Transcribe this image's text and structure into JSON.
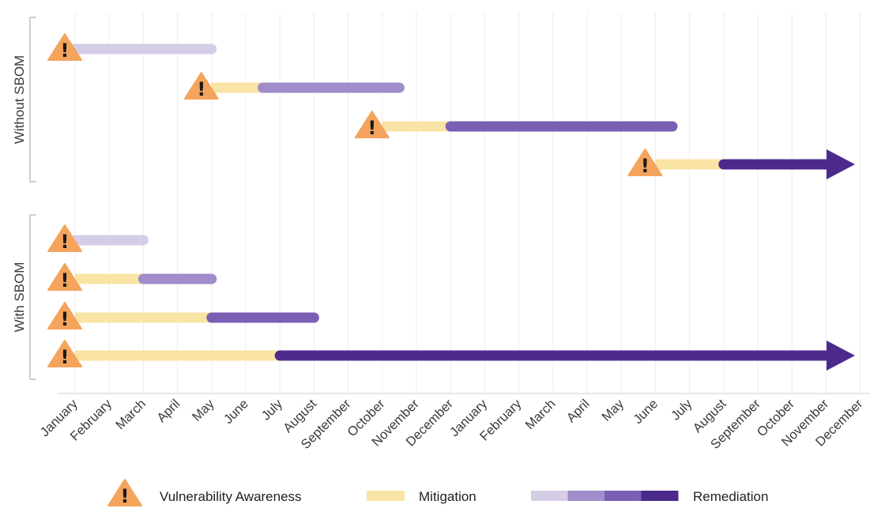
{
  "chart_data": {
    "type": "timeline",
    "x_ticks": [
      "January",
      "February",
      "March",
      "April",
      "May",
      "June",
      "July",
      "August",
      "September",
      "October",
      "November",
      "December",
      "January",
      "February",
      "March",
      "April",
      "May",
      "June",
      "July",
      "August",
      "September",
      "October",
      "November",
      "December"
    ],
    "groups": [
      {
        "label": "Without SBOM",
        "rows": [
          {
            "awareness": 0,
            "mitigation_end": 0,
            "remediation_end": 4,
            "remediation_shade": 0
          },
          {
            "awareness": 4,
            "mitigation_end": 5.5,
            "remediation_end": 9.5,
            "remediation_shade": 1
          },
          {
            "awareness": 9,
            "mitigation_end": 11,
            "remediation_end": 17.5,
            "remediation_shade": 2
          },
          {
            "awareness": 17,
            "mitigation_end": 19,
            "remediation_end": 23,
            "remediation_shade": 3,
            "arrow": true
          }
        ]
      },
      {
        "label": "With SBOM",
        "rows": [
          {
            "awareness": 0,
            "mitigation_end": 0,
            "remediation_end": 2,
            "remediation_shade": 0
          },
          {
            "awareness": 0,
            "mitigation_end": 2,
            "remediation_end": 4,
            "remediation_shade": 1
          },
          {
            "awareness": 0,
            "mitigation_end": 4,
            "remediation_end": 7,
            "remediation_shade": 2
          },
          {
            "awareness": 0,
            "mitigation_end": 6,
            "remediation_end": 23,
            "remediation_shade": 3,
            "arrow": true
          }
        ]
      }
    ],
    "legend": [
      {
        "label": "Vulnerability Awareness"
      },
      {
        "label": "Mitigation"
      },
      {
        "label": "Remediation"
      }
    ],
    "colors": {
      "awareness": "#f5a45d",
      "mitigation": "#f9e4a5",
      "remediation": [
        "#d5cde6",
        "#a08dc9",
        "#7a5fb4",
        "#4b2a8c"
      ],
      "grid": "#ececec",
      "bracket": "#b5b5b5"
    },
    "grid": true
  }
}
